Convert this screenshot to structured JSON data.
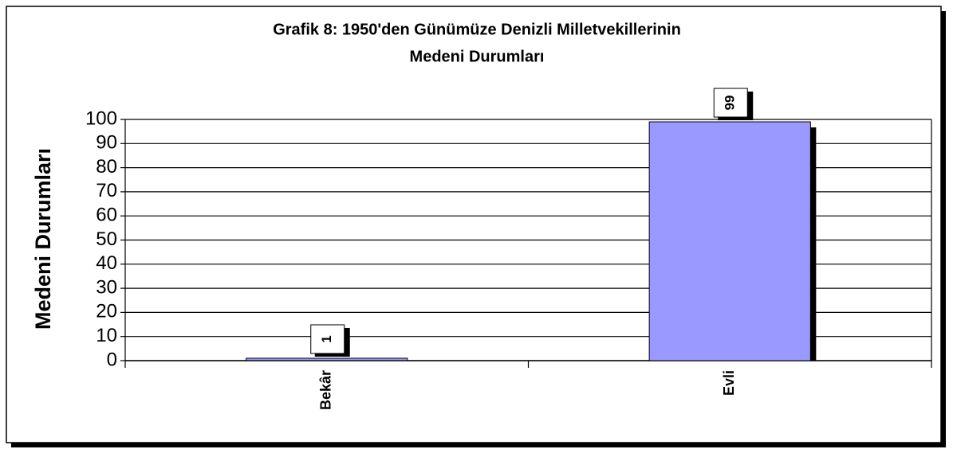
{
  "chart_data": {
    "type": "bar",
    "title": [
      "Grafik 8: 1950'den Günümüze Denizli Milletvekillerinin",
      "Medeni Durumları"
    ],
    "y_label": "Medeni Durumları",
    "categories": [
      "Bekâr",
      "Evli"
    ],
    "values": [
      1,
      99
    ],
    "color": "#9999ff",
    "ylim": [
      0,
      100
    ],
    "yticks": [
      0,
      10,
      20,
      30,
      40,
      50,
      60,
      70,
      80,
      90,
      100
    ],
    "grid": true
  }
}
